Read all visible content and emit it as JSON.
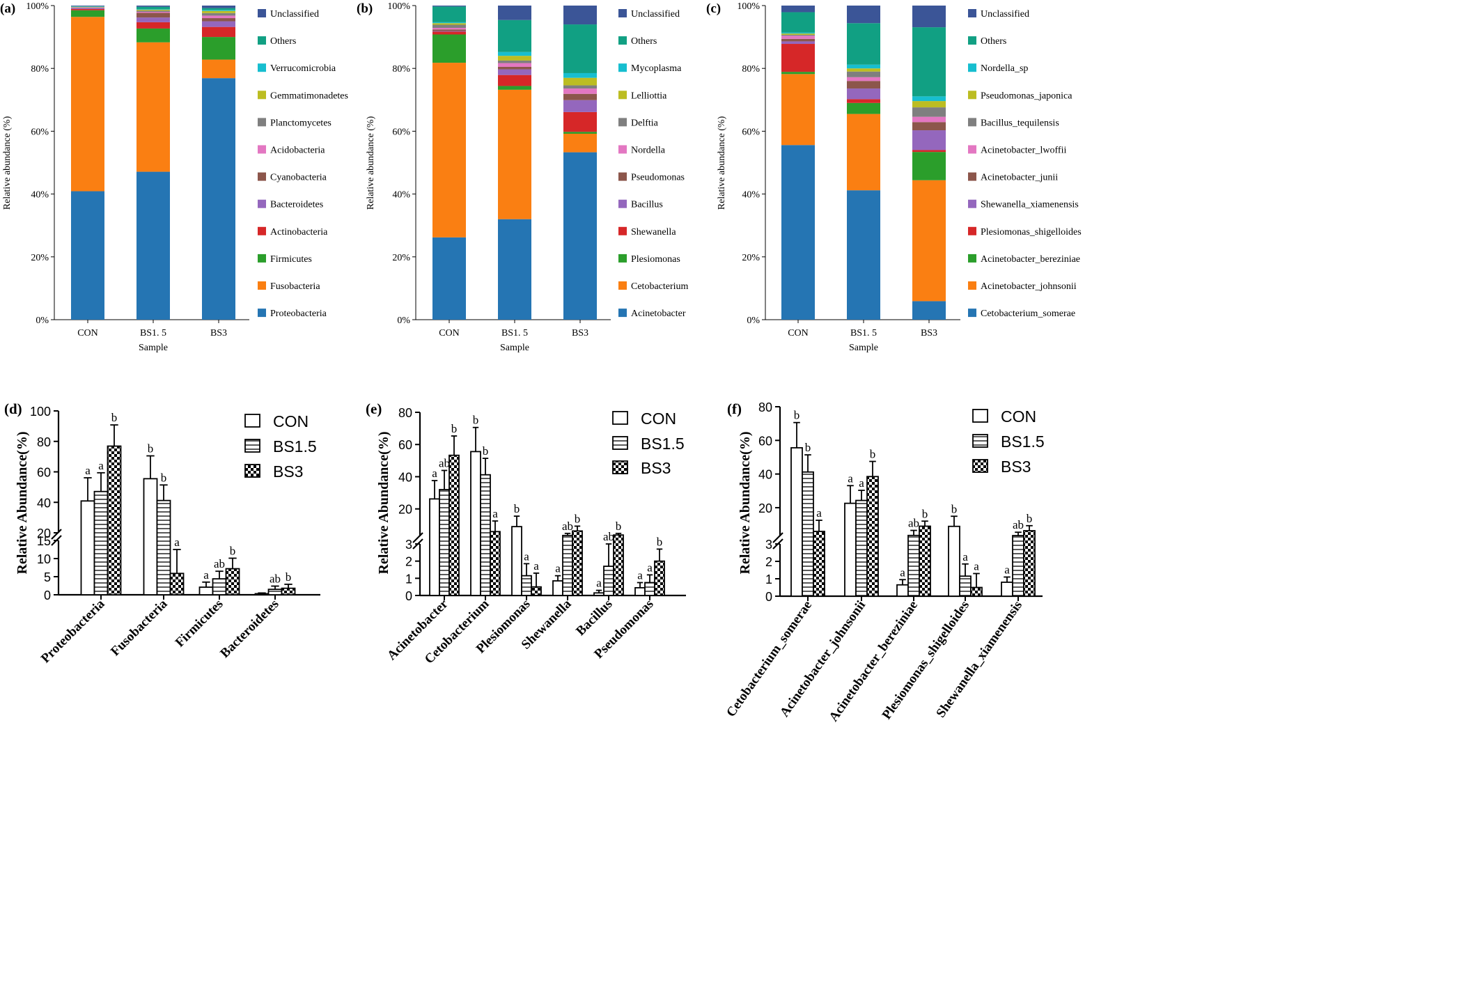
{
  "palettes": {
    "top": [
      "#2575b3",
      "#fa7f12",
      "#2b9e2b",
      "#d62728",
      "#9467bd",
      "#8c564b",
      "#e377c2",
      "#7f7f7f",
      "#bcbd22",
      "#17becf",
      "#11a083",
      "#3b5597"
    ]
  },
  "text": {
    "ylabel_top": "Relative abundance (%)",
    "xlabel_top": "Sample",
    "ylabel_bottom": "Relative Abundance(%)"
  },
  "chart_data": [
    {
      "panel": "(a)",
      "type": "stacked-bar",
      "categories": [
        "CON",
        "BS1. 5",
        "BS3"
      ],
      "xlabel": "Sample",
      "ylabel": "Relative abundance (%)",
      "yticks": [
        "0%",
        "20%",
        "40%",
        "60%",
        "80%",
        "100%"
      ],
      "ylim": [
        0,
        100
      ],
      "show_xlabel": true,
      "series": [
        {
          "name": "Proteobacteria",
          "values": [
            40.9,
            47.1,
            76.9
          ]
        },
        {
          "name": "Fusobacteria",
          "values": [
            55.5,
            41.2,
            5.9
          ]
        },
        {
          "name": "Firmicutes",
          "values": [
            2.1,
            4.4,
            7.2
          ]
        },
        {
          "name": "Actinobacteria",
          "values": [
            0.4,
            2.0,
            3.2
          ]
        },
        {
          "name": "Bacteroidetes",
          "values": [
            0.3,
            1.5,
            1.8
          ]
        },
        {
          "name": "Cyanobacteria",
          "values": [
            0.1,
            1.5,
            1.0
          ]
        },
        {
          "name": "Acidobacteria",
          "values": [
            0.1,
            0.3,
            0.8
          ]
        },
        {
          "name": "Planctomycetes",
          "values": [
            0.1,
            0.4,
            0.8
          ]
        },
        {
          "name": "Gemmatimonadetes",
          "values": [
            0.1,
            0.3,
            0.7
          ]
        },
        {
          "name": "Verrucomicrobia",
          "values": [
            0.1,
            0.2,
            0.3
          ]
        },
        {
          "name": "Others",
          "values": [
            0.1,
            0.7,
            0.6
          ]
        },
        {
          "name": "Unclassified",
          "values": [
            0.2,
            0.4,
            0.8
          ]
        }
      ]
    },
    {
      "panel": "(b)",
      "type": "stacked-bar",
      "categories": [
        "CON",
        "BS1. 5",
        "BS3"
      ],
      "xlabel": "Sample",
      "ylabel": "Relative abundance (%)",
      "yticks": [
        "0%",
        "20%",
        "40%",
        "60%",
        "80%",
        "100%"
      ],
      "ylim": [
        0,
        100
      ],
      "show_xlabel": true,
      "series": [
        {
          "name": "Acinetobacter",
          "values": [
            26.2,
            32.0,
            53.3
          ]
        },
        {
          "name": "Cetobacterium",
          "values": [
            55.6,
            41.2,
            5.9
          ]
        },
        {
          "name": "Plesiomonas",
          "values": [
            9.0,
            1.2,
            0.6
          ]
        },
        {
          "name": "Shewanella",
          "values": [
            0.9,
            3.5,
            6.3
          ]
        },
        {
          "name": "Bacillus",
          "values": [
            0.2,
            1.8,
            3.8
          ]
        },
        {
          "name": "Pseudomonas",
          "values": [
            0.5,
            0.8,
            2.0
          ]
        },
        {
          "name": "Nordella",
          "values": [
            0.5,
            1.2,
            1.7
          ]
        },
        {
          "name": "Delftia",
          "values": [
            1.0,
            0.8,
            1.0
          ]
        },
        {
          "name": "Lelliottia",
          "values": [
            0.5,
            1.5,
            2.4
          ]
        },
        {
          "name": "Mycoplasma",
          "values": [
            0.3,
            1.2,
            1.5
          ]
        },
        {
          "name": "Others",
          "values": [
            5.0,
            10.2,
            15.5
          ]
        },
        {
          "name": "Unclassified",
          "values": [
            0.3,
            4.6,
            6.0
          ]
        }
      ]
    },
    {
      "panel": "(c)",
      "type": "stacked-bar",
      "categories": [
        "CON",
        "BS1. 5",
        "BS3"
      ],
      "xlabel": "Sample",
      "ylabel": "Relative abundance (%)",
      "yticks": [
        "0%",
        "20%",
        "40%",
        "60%",
        "80%",
        "100%"
      ],
      "ylim": [
        0,
        100
      ],
      "show_xlabel": true,
      "series": [
        {
          "name": "Cetobacterium_somerae",
          "values": [
            55.6,
            41.2,
            5.9
          ]
        },
        {
          "name": "Acinetobacter_johnsonii",
          "values": [
            22.6,
            24.3,
            38.5
          ]
        },
        {
          "name": "Acinetobacter_bereziniae",
          "values": [
            0.7,
            3.5,
            9.0
          ]
        },
        {
          "name": "Plesiomonas_shigelloides",
          "values": [
            8.9,
            1.2,
            0.6
          ]
        },
        {
          "name": "Shewanella_xiamenensis",
          "values": [
            0.8,
            3.4,
            6.3
          ]
        },
        {
          "name": "Acinetobacter_junii",
          "values": [
            0.8,
            2.4,
            2.6
          ]
        },
        {
          "name": "Acinetobacter_lwoffii",
          "values": [
            1.0,
            1.2,
            1.7
          ]
        },
        {
          "name": "Bacillus_tequilensis",
          "values": [
            0.3,
            1.8,
            3.0
          ]
        },
        {
          "name": "Pseudomonas_japonica",
          "values": [
            0.4,
            1.0,
            2.0
          ]
        },
        {
          "name": "Nordella_sp",
          "values": [
            0.3,
            1.2,
            1.5
          ]
        },
        {
          "name": "Others",
          "values": [
            6.5,
            13.2,
            22.0
          ]
        },
        {
          "name": "Unclassified",
          "values": [
            2.1,
            5.6,
            6.9
          ]
        }
      ]
    },
    {
      "panel": "(d)",
      "type": "bar",
      "ylabel": "Relative Abundance(%)",
      "categories": [
        "Proteobacteria",
        "Fusobacteria",
        "Firmicutes",
        "Bacteroidetes"
      ],
      "axis_break": {
        "lower": [
          0,
          15
        ],
        "upper": [
          20,
          100
        ]
      },
      "yticks_upper": [
        20,
        40,
        60,
        80,
        100
      ],
      "yticks_lower": [
        0,
        5,
        10,
        15
      ],
      "legend": [
        "CON",
        "BS1.5",
        "BS3"
      ],
      "series": [
        {
          "name": "CON",
          "values": [
            40.9,
            55.5,
            2.1,
            0.3
          ],
          "errors": [
            15.2,
            15.0,
            1.4,
            0.2
          ],
          "letters": [
            "a",
            "b",
            "a",
            ""
          ]
        },
        {
          "name": "BS1.5",
          "values": [
            47.1,
            41.2,
            4.4,
            1.5
          ],
          "errors": [
            12.3,
            10.2,
            2.1,
            0.9
          ],
          "letters": [
            "a",
            "b",
            "ab",
            "ab"
          ]
        },
        {
          "name": "BS3",
          "values": [
            76.9,
            5.9,
            7.2,
            1.8
          ],
          "errors": [
            13.9,
            6.6,
            2.9,
            1.1
          ],
          "letters": [
            "b",
            "a",
            "b",
            "b"
          ]
        }
      ]
    },
    {
      "panel": "(e)",
      "type": "bar",
      "ylabel": "Relative Abundance(%)",
      "categories": [
        "Acinetobacter",
        "Cetobacterium",
        "Plesiomonas",
        "Shewanella",
        "Bacillus",
        "Pseudomonas"
      ],
      "axis_break": {
        "lower": [
          0,
          3
        ],
        "upper": [
          3,
          80
        ]
      },
      "yticks_upper": [
        20,
        40,
        60,
        80
      ],
      "yticks_lower": [
        0,
        1,
        2,
        3
      ],
      "legend": [
        "CON",
        "BS1.5",
        "BS3"
      ],
      "series": [
        {
          "name": "CON",
          "values": [
            26.2,
            55.6,
            9.0,
            0.85,
            0.15,
            0.45
          ],
          "errors": [
            11.4,
            15.0,
            6.5,
            0.3,
            0.15,
            0.3
          ],
          "letters": [
            "a",
            "b",
            "b",
            "a",
            "a",
            "a"
          ]
        },
        {
          "name": "BS1.5",
          "values": [
            32.0,
            41.2,
            1.15,
            3.5,
            1.7,
            0.75
          ],
          "errors": [
            11.9,
            10.2,
            0.7,
            1.3,
            1.3,
            0.45
          ],
          "letters": [
            "ab",
            "b",
            "a",
            "ab",
            "ab",
            "a"
          ]
        },
        {
          "name": "BS3",
          "values": [
            53.3,
            5.9,
            0.5,
            6.3,
            3.8,
            2.0
          ],
          "errors": [
            12.0,
            6.6,
            0.8,
            3.0,
            1.0,
            0.7
          ],
          "letters": [
            "b",
            "a",
            "a",
            "b",
            "b",
            "b"
          ]
        }
      ]
    },
    {
      "panel": "(f)",
      "type": "bar",
      "ylabel": "Relative Abundance(%)",
      "categories": [
        "Cetobacterium_somerae",
        "Acinetobacter_johnsonii",
        "Acinetobacter_bereziniae",
        "Plesiomonas_shigelloides",
        "Shewanella_xiamenensis"
      ],
      "axis_break": {
        "lower": [
          0,
          3
        ],
        "upper": [
          3,
          80
        ]
      },
      "yticks_upper": [
        20,
        40,
        60,
        80
      ],
      "yticks_lower": [
        0,
        1,
        2,
        3
      ],
      "legend": [
        "CON",
        "BS1.5",
        "BS3"
      ],
      "series": [
        {
          "name": "CON",
          "values": [
            55.6,
            22.6,
            0.65,
            8.9,
            0.8
          ],
          "errors": [
            15.0,
            10.5,
            0.3,
            6.0,
            0.3
          ],
          "letters": [
            "b",
            "a",
            "a",
            "b",
            "a"
          ]
        },
        {
          "name": "BS1.5",
          "values": [
            41.2,
            24.3,
            3.5,
            1.15,
            3.4
          ],
          "errors": [
            10.2,
            6.0,
            3.0,
            0.7,
            2.0
          ],
          "letters": [
            "b",
            "a",
            "ab",
            "a",
            "ab"
          ]
        },
        {
          "name": "BS3",
          "values": [
            5.9,
            38.5,
            9.0,
            0.5,
            6.3
          ],
          "errors": [
            6.6,
            9.0,
            3.0,
            0.8,
            3.0
          ],
          "letters": [
            "a",
            "b",
            "b",
            "a",
            "b"
          ]
        }
      ]
    }
  ]
}
